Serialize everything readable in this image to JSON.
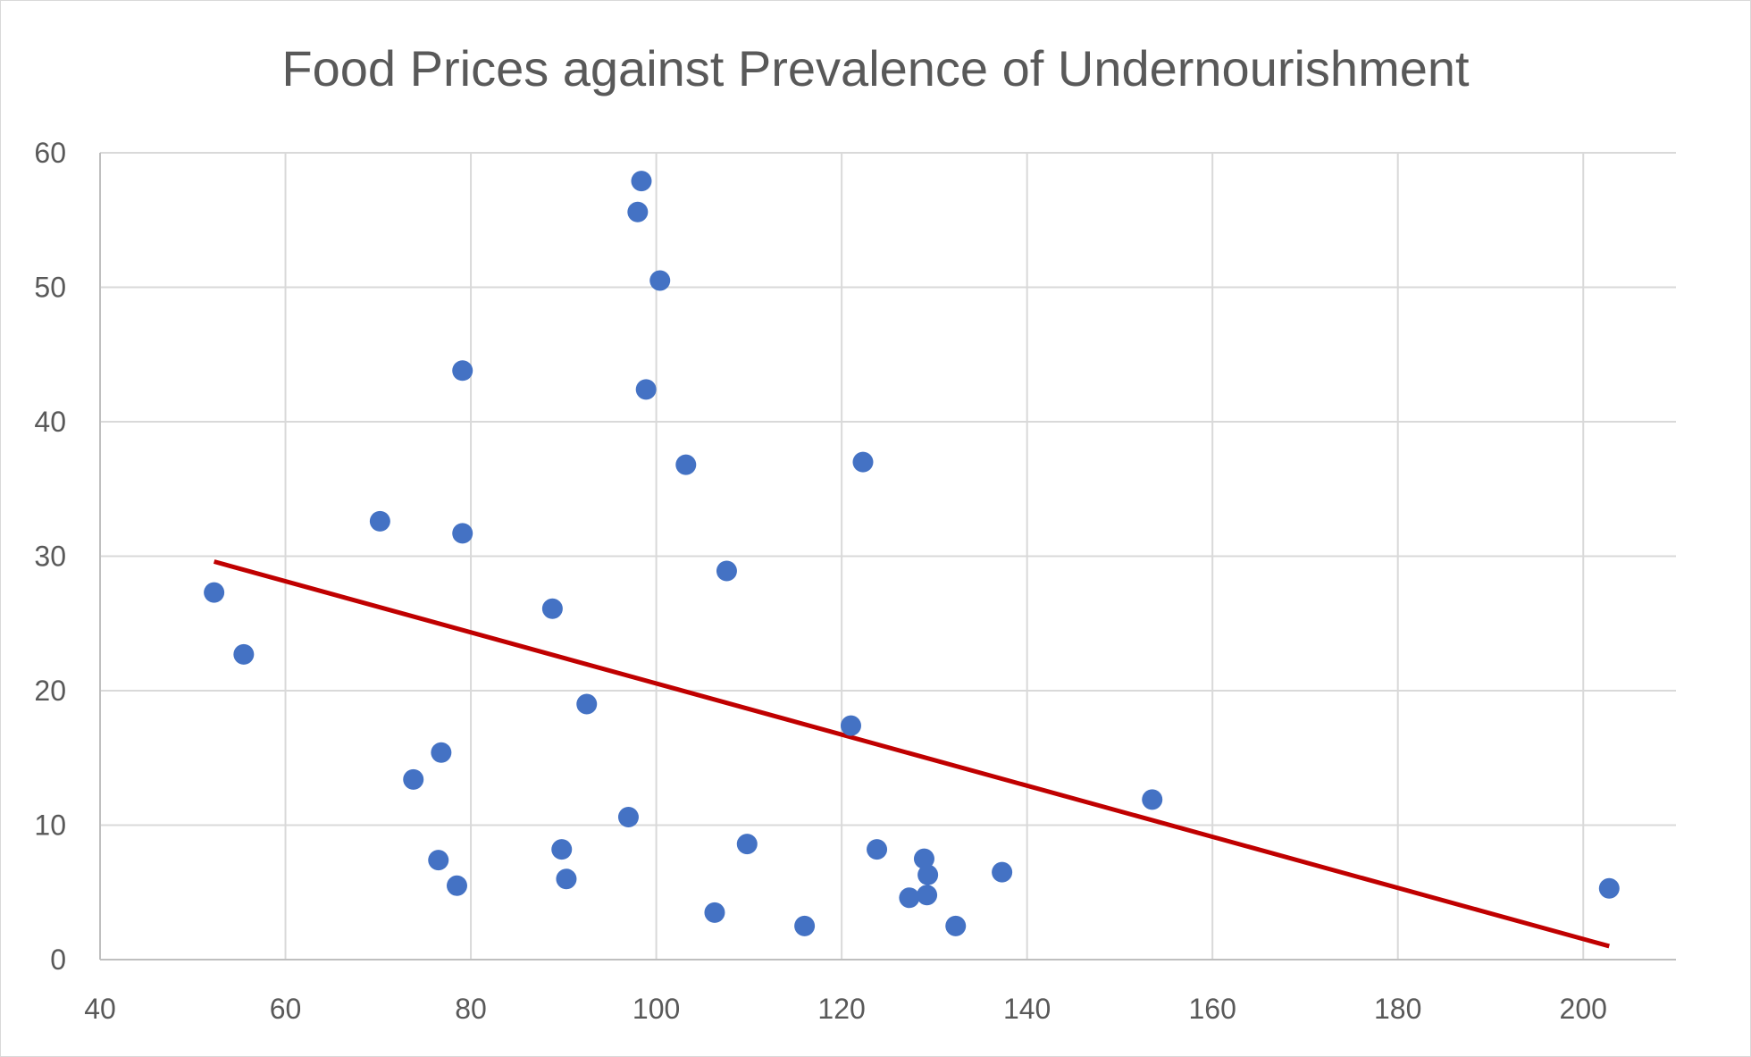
{
  "chart_data": {
    "type": "scatter",
    "title": "Food Prices against Prevalence of Undernourishment",
    "xlabel": "",
    "ylabel": "",
    "xlim": [
      40,
      210
    ],
    "ylim": [
      0,
      60
    ],
    "x_ticks": [
      40,
      60,
      80,
      100,
      120,
      140,
      160,
      180,
      200
    ],
    "y_ticks": [
      0,
      10,
      20,
      30,
      40,
      50,
      60
    ],
    "grid": true,
    "legend": "none",
    "marker_color": "#4472c4",
    "trendline_color": "#c00000",
    "series": [
      {
        "points": [
          {
            "x": 52.3,
            "y": 27.3
          },
          {
            "x": 55.5,
            "y": 22.7
          },
          {
            "x": 70.2,
            "y": 32.6
          },
          {
            "x": 73.8,
            "y": 13.4
          },
          {
            "x": 76.5,
            "y": 7.4
          },
          {
            "x": 76.8,
            "y": 15.4
          },
          {
            "x": 78.5,
            "y": 5.5
          },
          {
            "x": 79.1,
            "y": 43.8
          },
          {
            "x": 79.1,
            "y": 31.7
          },
          {
            "x": 88.8,
            "y": 26.1
          },
          {
            "x": 89.8,
            "y": 8.2
          },
          {
            "x": 90.3,
            "y": 6.0
          },
          {
            "x": 92.5,
            "y": 19.0
          },
          {
            "x": 97.0,
            "y": 10.6
          },
          {
            "x": 98.0,
            "y": 55.6
          },
          {
            "x": 98.4,
            "y": 57.9
          },
          {
            "x": 98.9,
            "y": 42.4
          },
          {
            "x": 100.4,
            "y": 50.5
          },
          {
            "x": 103.2,
            "y": 36.8
          },
          {
            "x": 106.3,
            "y": 3.5
          },
          {
            "x": 107.6,
            "y": 28.9
          },
          {
            "x": 109.8,
            "y": 8.6
          },
          {
            "x": 116.0,
            "y": 2.5
          },
          {
            "x": 121.0,
            "y": 17.4
          },
          {
            "x": 122.3,
            "y": 37.0
          },
          {
            "x": 123.8,
            "y": 8.2
          },
          {
            "x": 127.3,
            "y": 4.6
          },
          {
            "x": 128.9,
            "y": 7.5
          },
          {
            "x": 129.2,
            "y": 4.8
          },
          {
            "x": 129.3,
            "y": 6.3
          },
          {
            "x": 132.3,
            "y": 2.5
          },
          {
            "x": 137.3,
            "y": 6.5
          },
          {
            "x": 153.5,
            "y": 11.9
          },
          {
            "x": 202.8,
            "y": 5.3
          }
        ]
      }
    ],
    "trendline": {
      "x": [
        52.3,
        202.8
      ],
      "y": [
        29.6,
        1.0
      ]
    }
  }
}
